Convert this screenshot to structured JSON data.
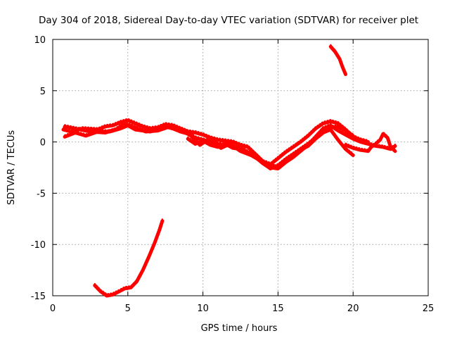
{
  "chart_data": {
    "type": "line",
    "title": "Day 304 of 2018, Sidereal Day-to-day VTEC variation (SDTVAR) for receiver plet",
    "xlabel": "GPS time / hours",
    "ylabel": "SDTVAR / TECUs",
    "xlim": [
      0,
      25
    ],
    "ylim": [
      -15,
      10
    ],
    "xticks": [
      0,
      5,
      10,
      15,
      20,
      25
    ],
    "yticks": [
      -15,
      -10,
      -5,
      0,
      5,
      10
    ],
    "grid": true,
    "legend": "none",
    "series_color": "#ff0000",
    "series": [
      {
        "name": "track-main-a",
        "x": [
          0.7,
          1.2,
          2,
          3,
          3.5,
          4,
          4.5,
          5,
          5.5,
          6,
          6.5,
          7,
          7.5,
          8,
          8.5,
          9,
          9.5,
          10,
          10.5,
          11,
          11.5,
          12,
          12.5,
          13,
          13.5,
          14,
          14.5,
          15,
          15.5,
          16,
          16.5,
          17,
          17.5,
          18,
          18.5,
          19,
          19.5,
          20,
          20.5,
          21
        ],
        "y": [
          1.2,
          1,
          1.3,
          1.2,
          1.5,
          1.6,
          1.9,
          2.1,
          1.8,
          1.5,
          1.3,
          1.4,
          1.7,
          1.6,
          1.3,
          1,
          0.9,
          0.7,
          0.4,
          0.2,
          0.1,
          0,
          -0.3,
          -0.5,
          -1.2,
          -1.9,
          -2.2,
          -1.6,
          -1,
          -0.5,
          0,
          0.6,
          1.3,
          1.8,
          2,
          1.8,
          1.2,
          0.5,
          0.2,
          0
        ]
      },
      {
        "name": "track-main-b",
        "x": [
          0.8,
          1.5,
          2.2,
          3,
          3.8,
          4.5,
          5,
          5.5,
          6,
          6.5,
          7,
          7.5,
          8,
          8.5,
          9,
          9.5,
          10,
          10.5,
          11,
          11.5,
          12,
          12.5,
          13,
          13.5,
          14,
          14.5,
          15,
          15.5,
          16,
          16.5,
          17,
          17.5,
          18,
          18.5,
          19,
          19.5,
          20
        ],
        "y": [
          0.5,
          0.9,
          0.6,
          1,
          1,
          1.3,
          1.6,
          1.2,
          1.1,
          1,
          1.2,
          1.5,
          1.3,
          1,
          0.8,
          0.4,
          0.2,
          0,
          -0.2,
          -0.3,
          -0.4,
          -0.6,
          -1,
          -1.5,
          -2.1,
          -2.6,
          -2.3,
          -1.7,
          -1.2,
          -0.7,
          -0.2,
          0.4,
          1,
          1.4,
          1.5,
          1.1,
          0.6
        ]
      },
      {
        "name": "track-main-c",
        "x": [
          0.8,
          1.5,
          2.5,
          3.5,
          4.2,
          4.8,
          5.5,
          6.2,
          7,
          7.8,
          8.5,
          9.2,
          9.8,
          10.5,
          11.2,
          11.8,
          12.5,
          13.2,
          13.8,
          14.5,
          15,
          15.5,
          16,
          16.5,
          17,
          17.5,
          18,
          18.5,
          19,
          19.5,
          20,
          20.5,
          21,
          21.5,
          22,
          22.5,
          22.8
        ],
        "y": [
          1.5,
          1.3,
          1,
          0.9,
          1.2,
          1.8,
          1.4,
          1,
          1.1,
          1.5,
          1.2,
          0.6,
          -0.3,
          0.4,
          -0.6,
          -0.2,
          -0.9,
          -1.3,
          -1.8,
          -2.5,
          -2.6,
          -2,
          -1.5,
          -0.9,
          -0.3,
          0.5,
          1.3,
          1.6,
          1.1,
          0.7,
          0.3,
          0,
          -0.2,
          -0.4,
          -0.5,
          -0.7,
          -0.4
        ]
      },
      {
        "name": "track-main-d",
        "x": [
          9,
          9.5,
          10,
          10.5,
          11,
          11.5,
          12,
          12.5,
          13,
          13.5,
          14,
          14.5,
          15,
          15.5,
          16,
          16.5,
          17,
          17.5,
          18,
          18.5,
          19,
          19.5,
          20
        ],
        "y": [
          0.3,
          -0.2,
          0.1,
          -0.3,
          -0.5,
          -0.2,
          -0.6,
          -0.7,
          -1.1,
          -1.5,
          -2,
          -2.3,
          -2.5,
          -1.9,
          -1.3,
          -0.8,
          -0.4,
          0.3,
          0.9,
          1.2,
          0.2,
          -0.7,
          -1.3
        ]
      },
      {
        "name": "track-late",
        "x": [
          19.5,
          20,
          20.5,
          21,
          21.2,
          21.5,
          21.8,
          22,
          22.3,
          22.5,
          22.8
        ],
        "y": [
          -0.3,
          -0.6,
          -0.8,
          -0.9,
          -0.5,
          -0.2,
          0.2,
          0.8,
          0.4,
          -0.5,
          -0.9
        ]
      },
      {
        "name": "track-upper",
        "x": [
          18.5,
          18.8,
          19.1,
          19.3,
          19.5
        ],
        "y": [
          9.3,
          8.8,
          8.1,
          7.3,
          6.6
        ]
      },
      {
        "name": "track-lower",
        "x": [
          2.8,
          3.2,
          3.6,
          4,
          4.4,
          4.8,
          5.2,
          5.6,
          6,
          6.4,
          6.8,
          7.1,
          7.3
        ],
        "y": [
          -14,
          -14.6,
          -15,
          -14.9,
          -14.6,
          -14.3,
          -14.2,
          -13.6,
          -12.5,
          -11.2,
          -9.8,
          -8.6,
          -7.7
        ]
      }
    ]
  }
}
